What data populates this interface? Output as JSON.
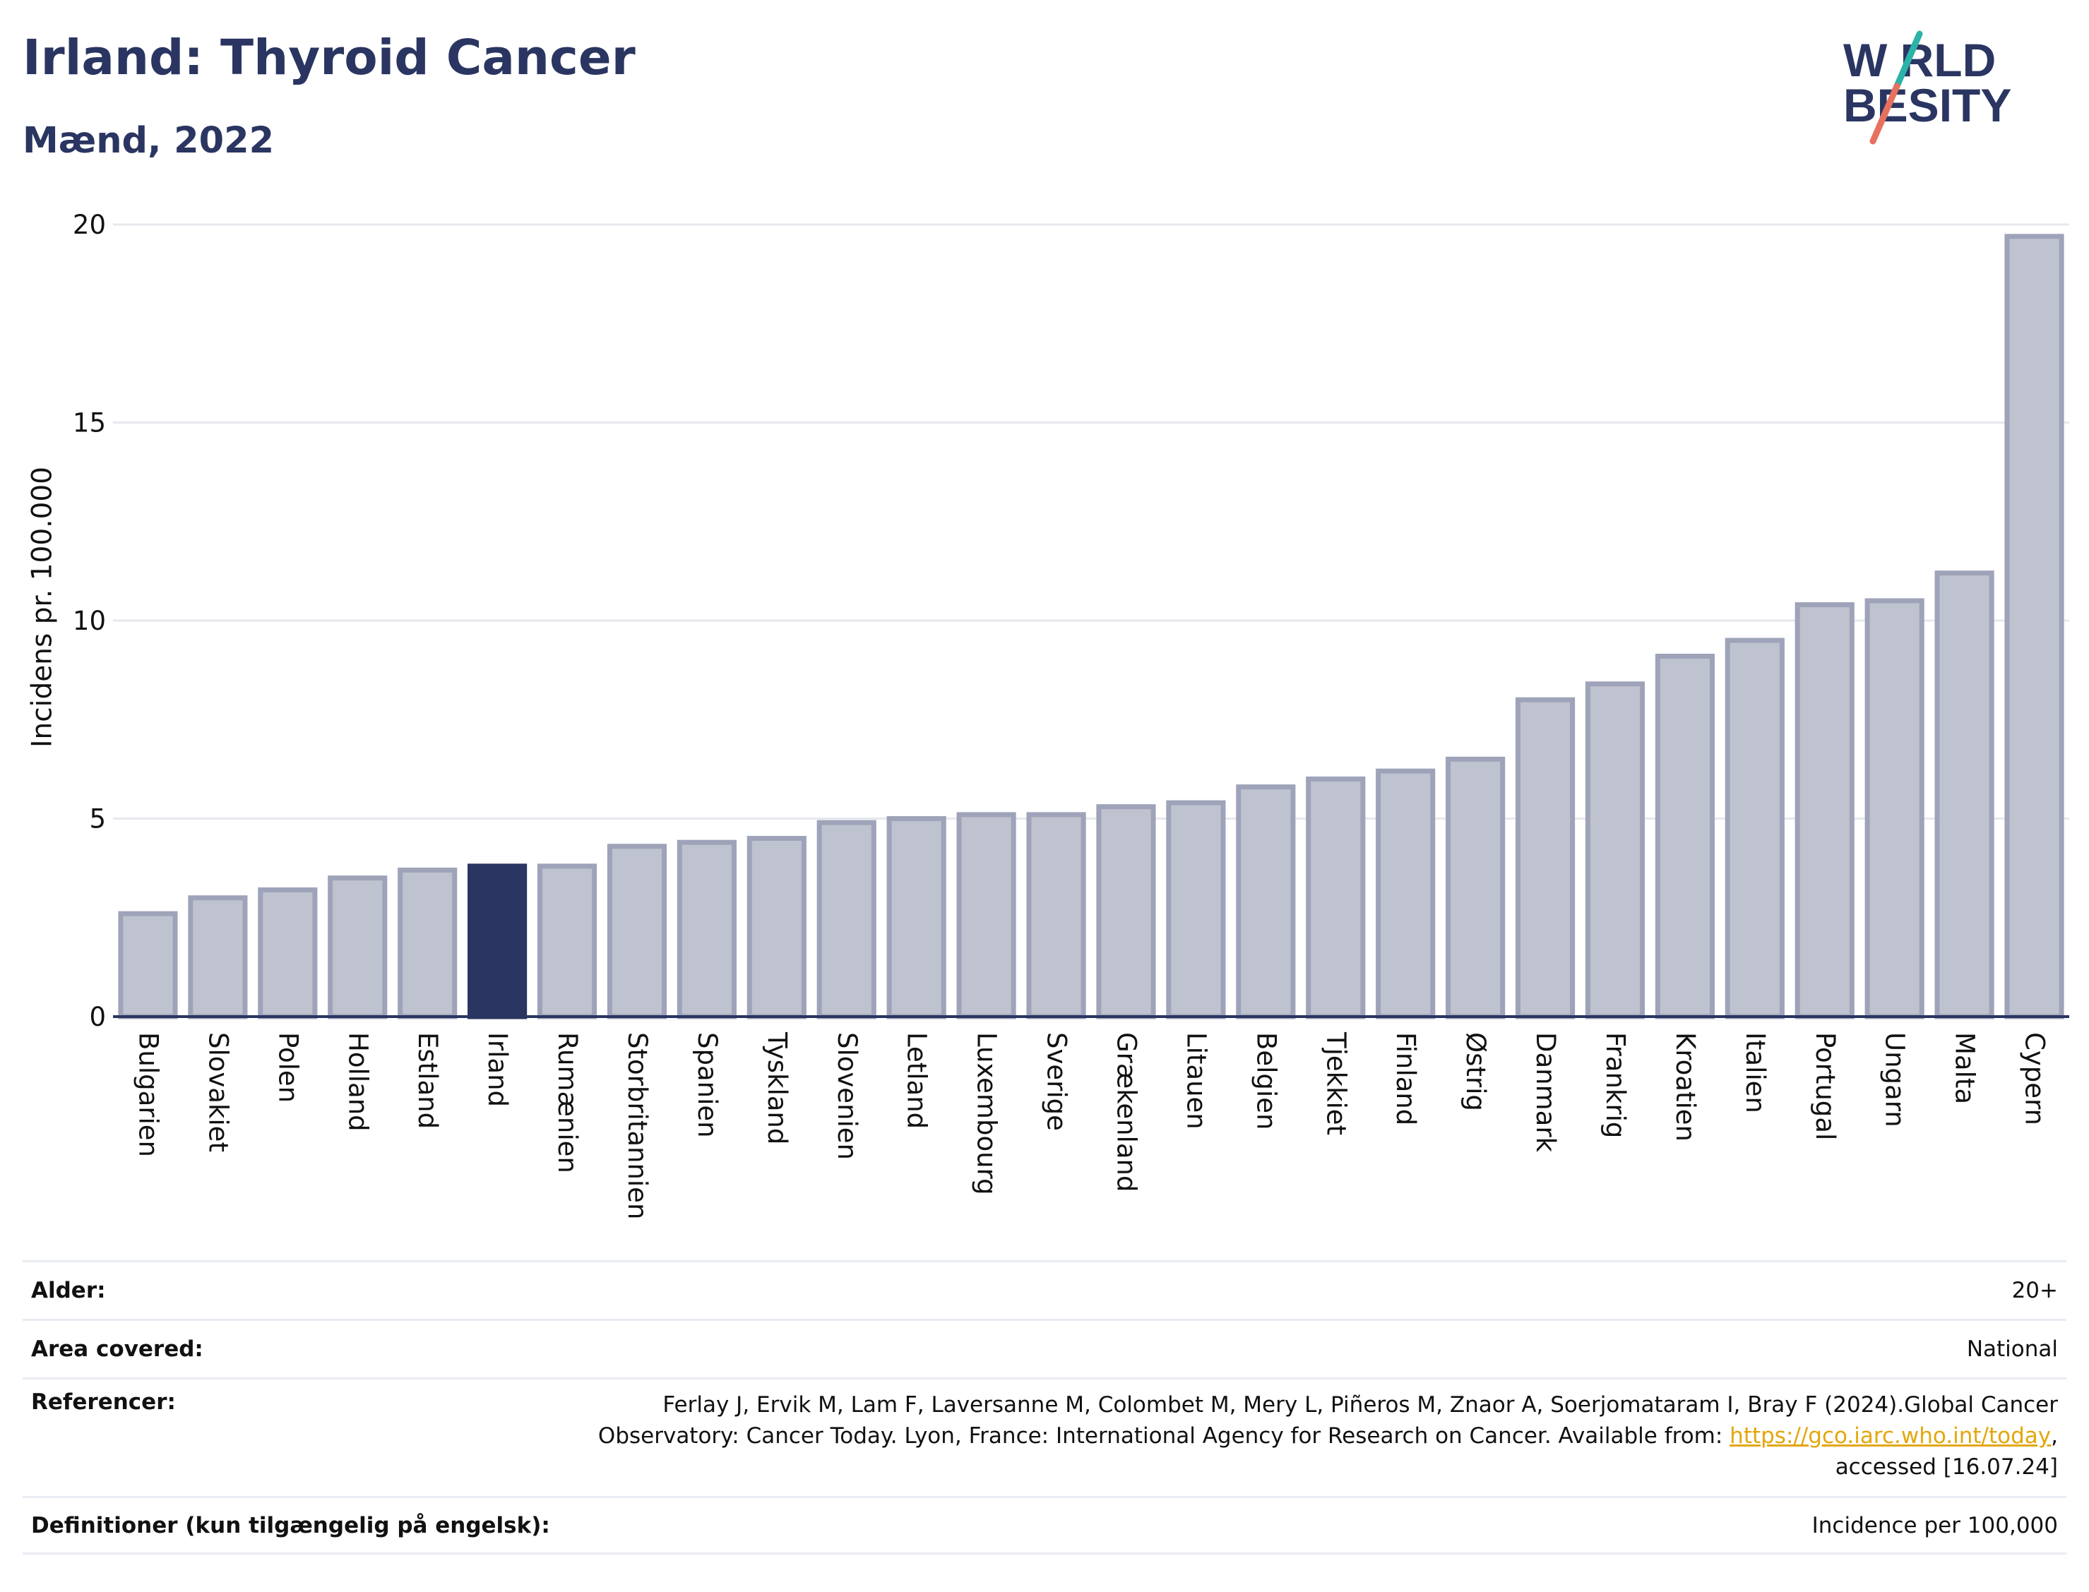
{
  "header": {
    "title": "Irland: Thyroid Cancer",
    "subtitle": "Mænd, 2022"
  },
  "logo": {
    "line1": "W RLD",
    "line2": " BESITY",
    "text": "WORLD OBESITY",
    "colors": {
      "text": "#2a3561",
      "slash_top": "#2bb3a8",
      "slash_bottom": "#e8705e"
    }
  },
  "colors": {
    "bar": "#bfc2cf",
    "bar_border": "#9ea3b9",
    "highlight": "#2a3561",
    "grid": "#e6e8ee",
    "axis": "#2a3561",
    "link": "#e3a70d"
  },
  "chart_data": {
    "type": "bar",
    "title": "Irland: Thyroid Cancer",
    "subtitle": "Mænd, 2022",
    "ylabel": "Incidens pr. 100.000",
    "xlabel": "",
    "ylim": [
      0,
      20
    ],
    "yticks": [
      0,
      5,
      10,
      15,
      20
    ],
    "grid": true,
    "highlight": "Irland",
    "categories": [
      "Bulgarien",
      "Slovakiet",
      "Polen",
      "Holland",
      "Estland",
      "Irland",
      "Rumænien",
      "Storbritannien",
      "Spanien",
      "Tyskland",
      "Slovenien",
      "Letland",
      "Luxembourg",
      "Sverige",
      "Grækenland",
      "Litauen",
      "Belgien",
      "Tjekkiet",
      "Finland",
      "Østrig",
      "Danmark",
      "Frankrig",
      "Kroatien",
      "Italien",
      "Portugal",
      "Ungarn",
      "Malta",
      "Cypern"
    ],
    "values": [
      2.6,
      3.0,
      3.2,
      3.5,
      3.7,
      3.8,
      3.8,
      4.3,
      4.4,
      4.5,
      4.9,
      5.0,
      5.1,
      5.1,
      5.3,
      5.4,
      5.8,
      6.0,
      6.2,
      6.5,
      8.0,
      8.4,
      9.1,
      9.5,
      10.4,
      10.5,
      11.2,
      19.7
    ]
  },
  "meta": {
    "age_label": "Alder:",
    "age_value": "20+",
    "area_label": "Area covered:",
    "area_value": "National",
    "ref_label": "Referencer:",
    "ref_line1": "Ferlay J, Ervik M, Lam F, Laversanne M, Colombet M, Mery L, Piñeros M, Znaor A, Soerjomataram I, Bray F (2024).Global Cancer",
    "ref_line2_pre": "Observatory: Cancer Today. Lyon, France: International Agency for Research on Cancer. Available from: ",
    "ref_link": "https://gco.iarc.who.int/today",
    "ref_line2_post": ",",
    "ref_line3": "accessed [16.07.24]",
    "def_label": "Definitioner (kun tilgængelig på engelsk):",
    "def_value": "Incidence per 100,000"
  }
}
